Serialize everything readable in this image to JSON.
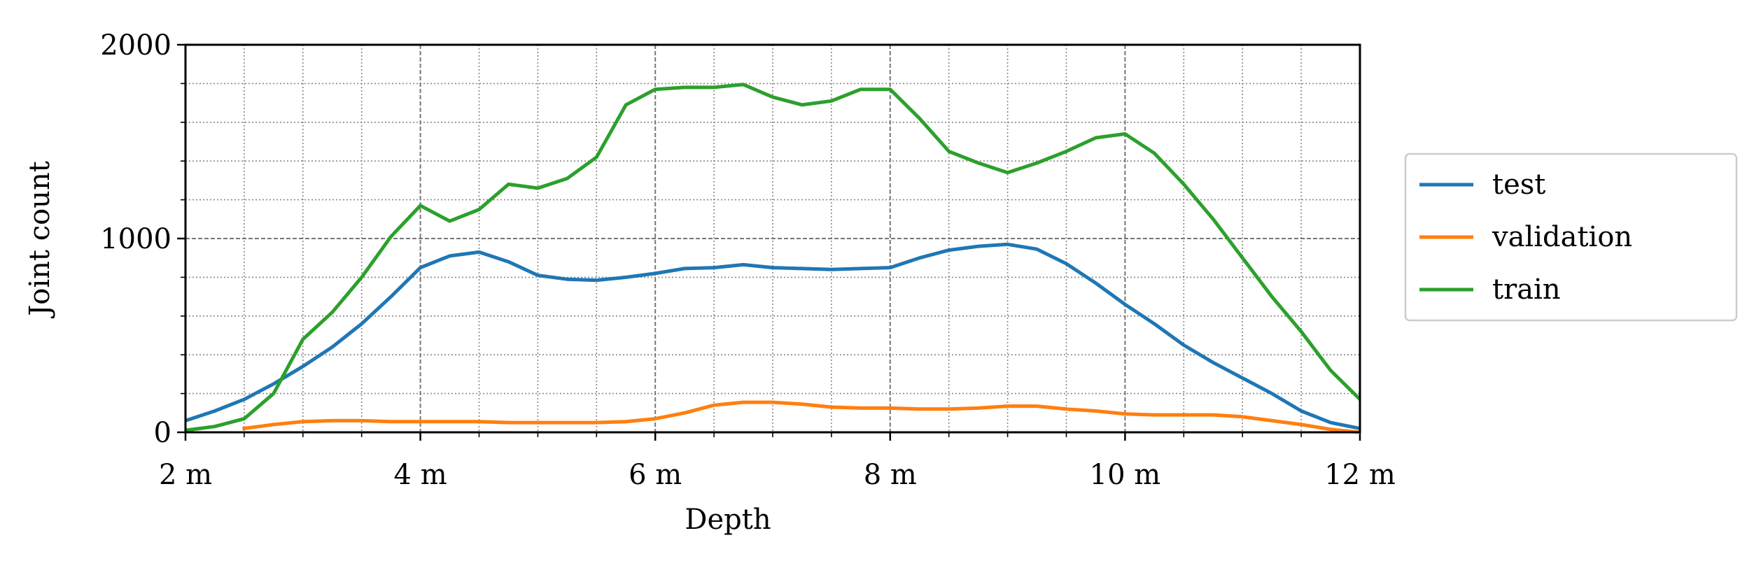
{
  "chart_data": {
    "type": "line",
    "xlabel": "Depth",
    "ylabel": "Joint count",
    "x": [
      2,
      2.25,
      2.5,
      2.75,
      3,
      3.25,
      3.5,
      3.75,
      4,
      4.25,
      4.5,
      4.75,
      5,
      5.25,
      5.5,
      5.75,
      6,
      6.25,
      6.5,
      6.75,
      7,
      7.25,
      7.5,
      7.75,
      8,
      8.25,
      8.5,
      8.75,
      9,
      9.25,
      9.5,
      9.75,
      10,
      10.25,
      10.5,
      10.75,
      11,
      11.25,
      11.5,
      11.75,
      12
    ],
    "series": [
      {
        "name": "test",
        "color": "#1f77b4",
        "values": [
          60,
          110,
          170,
          250,
          340,
          440,
          560,
          700,
          850,
          910,
          930,
          880,
          810,
          790,
          785,
          800,
          820,
          845,
          850,
          865,
          850,
          845,
          840,
          845,
          850,
          900,
          940,
          960,
          970,
          945,
          870,
          770,
          660,
          560,
          450,
          360,
          280,
          200,
          110,
          50,
          20
        ]
      },
      {
        "name": "validation",
        "color": "#ff7f0e",
        "values": [
          null,
          null,
          20,
          40,
          55,
          60,
          60,
          55,
          55,
          55,
          55,
          50,
          50,
          50,
          50,
          55,
          70,
          100,
          140,
          155,
          155,
          145,
          130,
          125,
          125,
          120,
          120,
          125,
          135,
          135,
          120,
          110,
          95,
          90,
          90,
          90,
          80,
          60,
          40,
          15,
          0
        ]
      },
      {
        "name": "train",
        "color": "#2ca02c",
        "values": [
          10,
          30,
          70,
          200,
          480,
          620,
          800,
          1010,
          1170,
          1090,
          1150,
          1280,
          1260,
          1310,
          1420,
          1690,
          1770,
          1780,
          1780,
          1795,
          1730,
          1690,
          1710,
          1770,
          1770,
          1620,
          1450,
          1390,
          1340,
          1390,
          1450,
          1520,
          1540,
          1440,
          1280,
          1100,
          900,
          700,
          520,
          320,
          170
        ]
      }
    ],
    "xlim": [
      2,
      12
    ],
    "xticks": [
      {
        "value": 2,
        "label": "2 m"
      },
      {
        "value": 4,
        "label": "4 m"
      },
      {
        "value": 6,
        "label": "6 m"
      },
      {
        "value": 8,
        "label": "8 m"
      },
      {
        "value": 10,
        "label": "10 m"
      },
      {
        "value": 12,
        "label": "12 m"
      }
    ],
    "xminorticks": [
      2.5,
      3,
      3.5,
      4.5,
      5,
      5.5,
      6.5,
      7,
      7.5,
      8.5,
      9,
      9.5,
      10.5,
      11,
      11.5
    ],
    "ylim": [
      0,
      2000
    ],
    "yticks": [
      0,
      1000,
      2000
    ],
    "yminorticks": [
      200,
      400,
      600,
      800,
      1200,
      1400,
      1600,
      1800
    ],
    "grid": true,
    "legend": "outside right"
  }
}
